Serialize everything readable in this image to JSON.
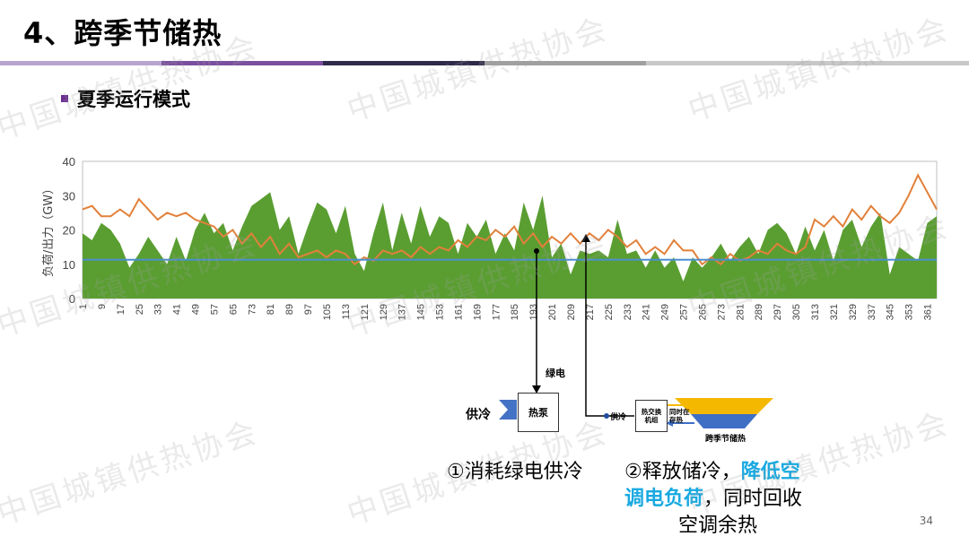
{
  "header": {
    "title": "4、跨季节储热",
    "subtitle": "夏季运行模式",
    "rule_colors": [
      "#b9a4cf",
      "#7a4f9f",
      "#2f2a4a",
      "#a0a0a0",
      "#c8c8c8"
    ]
  },
  "watermark": "中国城镇供热协会",
  "page_number": "34",
  "colors": {
    "green_area": "#5a9e32",
    "orange_line": "#e2803a",
    "blue_line": "#4a8fd0",
    "accent_text": "#19a9e1",
    "arrow_blue": "#4472c4",
    "tank_top": "#f5b800",
    "tank_bottom": "#3f6fc4"
  },
  "chart_data": {
    "type": "area",
    "title": "",
    "ylabel": "负荷/出力（GW）",
    "xlabel": "",
    "ylim": [
      0,
      40
    ],
    "yticks": [
      0,
      10,
      20,
      30,
      40
    ],
    "xlim": [
      1,
      365
    ],
    "x_tick_labels": [
      "1",
      "9",
      "17",
      "25",
      "33",
      "41",
      "49",
      "57",
      "65",
      "73",
      "81",
      "89",
      "97",
      "105",
      "113",
      "121",
      "129",
      "137",
      "145",
      "153",
      "161",
      "169",
      "177",
      "185",
      "193",
      "201",
      "209",
      "217",
      "225",
      "233",
      "241",
      "249",
      "257",
      "265",
      "273",
      "281",
      "289",
      "297",
      "305",
      "313",
      "321",
      "329",
      "337",
      "345",
      "353",
      "361"
    ],
    "series": [
      {
        "type": "area",
        "x": [
          1,
          5,
          9,
          13,
          17,
          21,
          25,
          29,
          33,
          37,
          41,
          45,
          49,
          53,
          57,
          61,
          65,
          69,
          73,
          77,
          81,
          85,
          89,
          93,
          97,
          101,
          105,
          109,
          113,
          117,
          121,
          125,
          129,
          133,
          137,
          141,
          145,
          149,
          153,
          157,
          161,
          165,
          169,
          173,
          177,
          181,
          185,
          189,
          193,
          197,
          201,
          205,
          209,
          213,
          217,
          221,
          225,
          229,
          233,
          237,
          241,
          245,
          249,
          253,
          257,
          261,
          265,
          269,
          273,
          277,
          281,
          285,
          289,
          293,
          297,
          301,
          305,
          309,
          313,
          317,
          321,
          325,
          329,
          333,
          337,
          341,
          345,
          349,
          353,
          357,
          361,
          365
        ],
        "values": [
          19,
          17,
          22,
          20,
          16,
          9,
          13,
          18,
          14,
          10,
          18,
          11,
          20,
          25,
          19,
          22,
          14,
          21,
          27,
          29,
          31,
          20,
          24,
          13,
          21,
          28,
          26,
          19,
          27,
          13,
          8,
          19,
          28,
          14,
          25,
          16,
          27,
          18,
          24,
          22,
          13,
          22,
          18,
          23,
          13,
          19,
          14,
          28,
          20,
          30,
          12,
          16,
          7,
          14,
          13,
          14,
          12,
          23,
          13,
          14,
          9,
          14,
          9,
          12,
          5,
          12,
          9,
          12,
          16,
          11,
          15,
          18,
          13,
          20,
          22,
          19,
          13,
          21,
          14,
          20,
          11,
          20,
          23,
          15,
          21,
          25,
          7,
          15,
          13,
          11,
          22,
          24
        ]
      },
      {
        "type": "line",
        "x": [
          1,
          5,
          9,
          13,
          17,
          21,
          25,
          29,
          33,
          37,
          41,
          45,
          49,
          53,
          57,
          61,
          65,
          69,
          73,
          77,
          81,
          85,
          89,
          93,
          97,
          101,
          105,
          109,
          113,
          117,
          121,
          125,
          129,
          133,
          137,
          141,
          145,
          149,
          153,
          157,
          161,
          165,
          169,
          173,
          177,
          181,
          185,
          189,
          193,
          197,
          201,
          205,
          209,
          213,
          217,
          221,
          225,
          229,
          233,
          237,
          241,
          245,
          249,
          253,
          257,
          261,
          265,
          269,
          273,
          277,
          281,
          285,
          289,
          293,
          297,
          301,
          305,
          309,
          313,
          317,
          321,
          325,
          329,
          333,
          337,
          341,
          345,
          349,
          353,
          357,
          361,
          365
        ],
        "values": [
          26,
          27,
          24,
          24,
          26,
          24,
          29,
          26,
          23,
          25,
          24,
          25,
          23,
          22,
          21,
          18,
          20,
          16,
          19,
          15,
          18,
          13,
          16,
          12,
          13,
          14,
          12,
          14,
          13,
          10,
          12,
          11,
          14,
          13,
          14,
          12,
          15,
          13,
          15,
          14,
          17,
          15,
          18,
          17,
          20,
          18,
          21,
          16,
          19,
          15,
          18,
          16,
          19,
          16,
          19,
          17,
          20,
          18,
          15,
          17,
          13,
          15,
          13,
          17,
          14,
          14,
          10,
          12,
          10,
          13,
          11,
          12,
          14,
          13,
          16,
          14,
          13,
          15,
          23,
          21,
          24,
          21,
          26,
          23,
          27,
          24,
          22,
          25,
          30,
          36,
          31,
          26
        ]
      },
      {
        "type": "line",
        "x": [
          1,
          365
        ],
        "values": [
          11.3,
          11.3
        ]
      }
    ],
    "legend": "none",
    "grid": false
  },
  "diagram": {
    "green_power_label": "绿电",
    "heat_pump_label": "热泵",
    "cooling_out_label": "供冷",
    "cooling_in_label": "供冷",
    "heat_exchanger_label": [
      "热交换",
      "机组"
    ],
    "simultaneous_label": [
      "同时在",
      "存热"
    ],
    "storage_label": "跨季节储热"
  },
  "captions": {
    "left": "①消耗绿电供冷",
    "right_line1_normal": "②释放储冷，",
    "right_line1_highlight": "降低空",
    "right_line2_highlight": "调电负荷",
    "right_line2_normal": "，同时回收",
    "right_line3": "空调余热"
  }
}
